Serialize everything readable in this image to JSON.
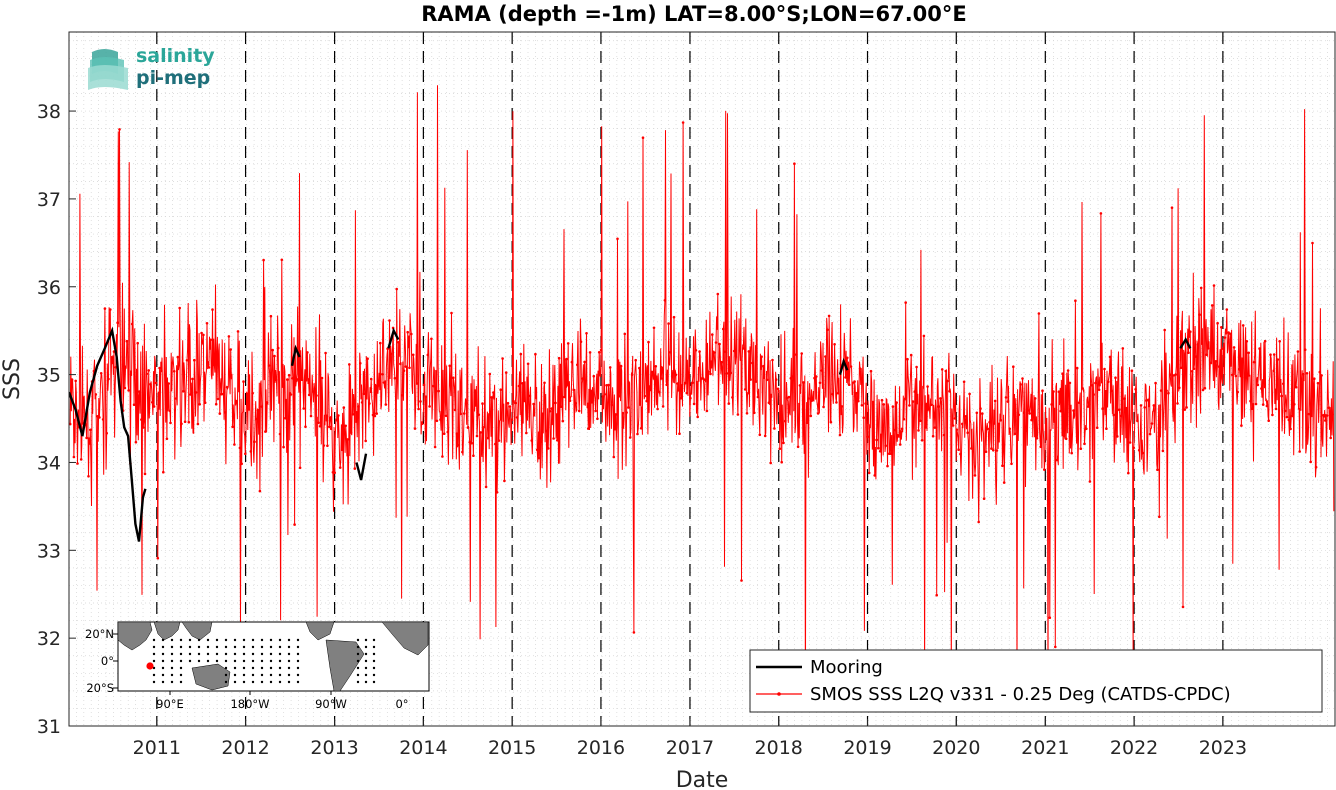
{
  "logo": {
    "line1": "salinity",
    "line2": "pi-mep"
  },
  "chart_data": {
    "type": "line",
    "title": "RAMA (depth =-1m) LAT=8.00°S;LON=67.00°E",
    "xlabel": "Date",
    "ylabel": "SSS",
    "xlim": [
      "2010-01-05",
      "2024-04-06"
    ],
    "ylim": [
      31,
      38.9
    ],
    "x_ticks": [
      "2011",
      "2012",
      "2013",
      "2014",
      "2015",
      "2016",
      "2017",
      "2018",
      "2019",
      "2020",
      "2021",
      "2022",
      "2023"
    ],
    "y_ticks": [
      31,
      32,
      33,
      34,
      35,
      36,
      37,
      38
    ],
    "grid": "dotted minor grid",
    "year_markers": "dashed vertical line at each January 1",
    "legend_position": "bottom-right",
    "series": [
      {
        "name": "Mooring",
        "color": "#000000",
        "segments": [
          {
            "x": [
              "2010-01-05",
              "2010-02-01",
              "2010-03-01",
              "2010-04-01",
              "2010-05-01",
              "2010-06-01",
              "2010-07-01",
              "2010-07-20",
              "2010-08-05",
              "2010-08-20",
              "2010-09-05",
              "2010-09-20",
              "2010-10-05",
              "2010-10-20",
              "2010-11-05",
              "2010-11-15"
            ],
            "y": [
              34.8,
              34.6,
              34.3,
              34.8,
              35.1,
              35.3,
              35.5,
              35.2,
              34.7,
              34.4,
              34.3,
              33.8,
              33.3,
              33.1,
              33.6,
              33.7
            ]
          },
          {
            "x": [
              "2012-07-10",
              "2012-07-25",
              "2012-08-10"
            ],
            "y": [
              35.1,
              35.3,
              35.2
            ]
          },
          {
            "x": [
              "2013-04-01",
              "2013-04-20",
              "2013-05-10"
            ],
            "y": [
              34.0,
              33.8,
              34.1
            ]
          },
          {
            "x": [
              "2013-08-10",
              "2013-09-01",
              "2013-09-20"
            ],
            "y": [
              35.3,
              35.5,
              35.4
            ]
          },
          {
            "x": [
              "2018-09-10",
              "2018-09-25",
              "2018-10-10"
            ],
            "y": [
              35.0,
              35.15,
              35.05
            ]
          },
          {
            "x": [
              "2022-07-10",
              "2022-08-01",
              "2022-08-20"
            ],
            "y": [
              35.3,
              35.4,
              35.3
            ]
          }
        ]
      },
      {
        "name": "SMOS SSS L2Q v331 - 0.25 Deg (CATDS-CPDC)",
        "color": "#ff0000",
        "marker": "dot",
        "description": "near-daily satellite SSS time series, mostly 33.5-36.5 with spikes from about 31.3 to 38.7",
        "x": [
          "2010-01-10",
          "2010-04-15",
          "2010-07-15",
          "2010-10-15",
          "2011-01-15",
          "2011-04-15",
          "2011-07-15",
          "2011-10-15",
          "2012-01-15",
          "2012-04-15",
          "2012-07-15",
          "2012-10-15",
          "2013-01-15",
          "2013-04-15",
          "2013-07-15",
          "2013-10-15",
          "2014-01-15",
          "2014-04-15",
          "2014-07-15",
          "2014-10-15",
          "2015-01-15",
          "2015-04-15",
          "2015-07-15",
          "2015-10-15",
          "2016-01-15",
          "2016-04-15",
          "2016-07-15",
          "2016-10-15",
          "2017-01-15",
          "2017-04-15",
          "2017-07-15",
          "2017-10-15",
          "2018-01-15",
          "2018-04-15",
          "2018-07-15",
          "2018-10-15",
          "2019-01-15",
          "2019-04-15",
          "2019-07-15",
          "2019-10-15",
          "2020-01-15",
          "2020-04-15",
          "2020-07-15",
          "2020-10-15",
          "2021-01-15",
          "2021-04-15",
          "2021-07-15",
          "2021-10-15",
          "2022-01-15",
          "2022-04-15",
          "2022-07-15",
          "2022-10-15",
          "2023-01-15",
          "2023-04-15",
          "2023-07-15",
          "2023-10-15",
          "2024-01-15",
          "2024-04-01"
        ],
        "y": [
          34.6,
          34.4,
          35.2,
          35.0,
          34.7,
          34.9,
          35.1,
          34.8,
          34.5,
          34.7,
          35.0,
          34.9,
          34.3,
          34.6,
          35.0,
          35.2,
          34.8,
          34.7,
          34.6,
          34.5,
          34.6,
          34.4,
          34.8,
          34.9,
          34.8,
          34.6,
          35.0,
          35.1,
          34.9,
          35.1,
          35.2,
          35.0,
          34.8,
          34.6,
          34.9,
          35.0,
          34.5,
          34.3,
          34.6,
          34.8,
          34.5,
          34.2,
          34.6,
          34.7,
          34.6,
          34.3,
          34.7,
          34.8,
          34.5,
          34.4,
          35.1,
          35.3,
          35.2,
          35.0,
          34.9,
          34.7,
          34.5,
          34.3
        ]
      }
    ]
  },
  "inset_map": {
    "lat_labels": [
      "20°N",
      "0°",
      "20°S"
    ],
    "lon_labels": [
      "90°E",
      "180°W",
      "90°W",
      "0°"
    ],
    "ocean_color": "#ffffff",
    "land_color": "#808080",
    "station_color": "#ff0000"
  }
}
